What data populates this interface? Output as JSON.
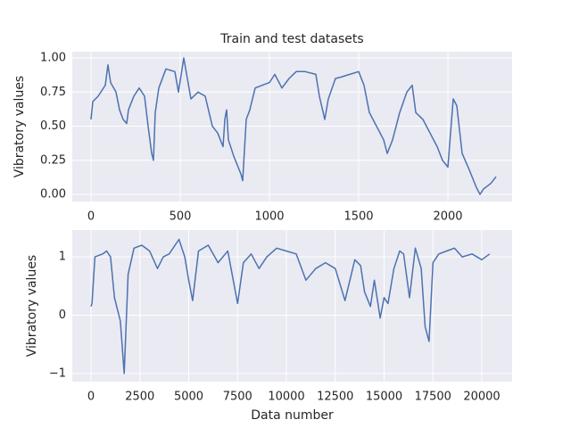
{
  "chart_data": [
    {
      "type": "line",
      "title": "Train and test datasets",
      "ylabel": "Vibratory values",
      "color": "#4c72b0",
      "grid": true,
      "xlim": [
        -105,
        2360
      ],
      "ylim": [
        -0.052,
        1.046
      ],
      "xticks": [
        0,
        500,
        1000,
        1500,
        2000
      ],
      "yticks": [
        {
          "value": 0,
          "label": "0.00"
        },
        {
          "value": 0.25,
          "label": "0.25"
        },
        {
          "value": 0.5,
          "label": "0.50"
        },
        {
          "value": 0.75,
          "label": "0.75"
        },
        {
          "value": 1,
          "label": "1.00"
        }
      ],
      "x": [
        0,
        10,
        40,
        80,
        95,
        110,
        140,
        160,
        180,
        200,
        210,
        240,
        270,
        300,
        320,
        340,
        350,
        360,
        380,
        420,
        470,
        490,
        520,
        540,
        560,
        600,
        640,
        680,
        710,
        740,
        750,
        760,
        770,
        800,
        840,
        850,
        870,
        890,
        920,
        960,
        1000,
        1030,
        1070,
        1110,
        1150,
        1200,
        1260,
        1280,
        1310,
        1330,
        1370,
        1400,
        1450,
        1500,
        1530,
        1560,
        1600,
        1640,
        1660,
        1690,
        1730,
        1770,
        1800,
        1820,
        1860,
        1900,
        1940,
        1970,
        2000,
        2030,
        2050,
        2080,
        2120,
        2160,
        2180,
        2200,
        2240,
        2270
      ],
      "values": [
        0.55,
        0.68,
        0.72,
        0.8,
        0.95,
        0.82,
        0.75,
        0.62,
        0.55,
        0.52,
        0.62,
        0.72,
        0.78,
        0.72,
        0.5,
        0.3,
        0.25,
        0.6,
        0.78,
        0.92,
        0.9,
        0.75,
        1.0,
        0.85,
        0.7,
        0.75,
        0.72,
        0.5,
        0.45,
        0.35,
        0.55,
        0.62,
        0.4,
        0.28,
        0.15,
        0.1,
        0.55,
        0.62,
        0.78,
        0.8,
        0.82,
        0.88,
        0.78,
        0.85,
        0.9,
        0.9,
        0.88,
        0.72,
        0.55,
        0.7,
        0.85,
        0.86,
        0.88,
        0.9,
        0.8,
        0.6,
        0.5,
        0.4,
        0.3,
        0.4,
        0.6,
        0.75,
        0.8,
        0.6,
        0.55,
        0.45,
        0.35,
        0.25,
        0.2,
        0.7,
        0.65,
        0.3,
        0.18,
        0.05,
        0.0,
        0.04,
        0.08,
        0.13
      ]
    },
    {
      "type": "line",
      "xlabel": "Data number",
      "ylabel": "Vibratory values",
      "color": "#4c72b0",
      "grid": true,
      "xlim": [
        -959,
        21552
      ],
      "ylim": [
        -1.14,
        1.46
      ],
      "xticks": [
        0,
        2500,
        5000,
        7500,
        10000,
        12500,
        15000,
        17500,
        20000
      ],
      "yticks": [
        {
          "value": -1,
          "label": "−1"
        },
        0,
        1
      ],
      "x": [
        0,
        50,
        200,
        600,
        800,
        1000,
        1200,
        1500,
        1700,
        1900,
        2200,
        2600,
        3000,
        3400,
        3700,
        4000,
        4500,
        4800,
        5000,
        5200,
        5500,
        6000,
        6500,
        7000,
        7500,
        7800,
        8200,
        8600,
        9000,
        9500,
        10000,
        10500,
        11000,
        11500,
        12000,
        12500,
        13000,
        13500,
        13800,
        14000,
        14300,
        14500,
        14800,
        15000,
        15200,
        15500,
        15800,
        16000,
        16300,
        16600,
        16900,
        17100,
        17300,
        17500,
        17800,
        18200,
        18600,
        19000,
        19500,
        20000,
        20400
      ],
      "values": [
        0.15,
        0.2,
        1.0,
        1.05,
        1.1,
        1.0,
        0.3,
        -0.1,
        -1.0,
        0.7,
        1.15,
        1.2,
        1.1,
        0.8,
        1.0,
        1.05,
        1.3,
        1.0,
        0.6,
        0.25,
        1.1,
        1.2,
        0.9,
        1.1,
        0.2,
        0.9,
        1.05,
        0.8,
        1.0,
        1.15,
        1.1,
        1.05,
        0.6,
        0.8,
        0.9,
        0.8,
        0.25,
        0.95,
        0.85,
        0.4,
        0.15,
        0.6,
        -0.05,
        0.3,
        0.2,
        0.8,
        1.1,
        1.05,
        0.3,
        1.15,
        0.8,
        -0.2,
        -0.45,
        0.9,
        1.05,
        1.1,
        1.15,
        1.0,
        1.05,
        0.95,
        1.05
      ]
    }
  ]
}
